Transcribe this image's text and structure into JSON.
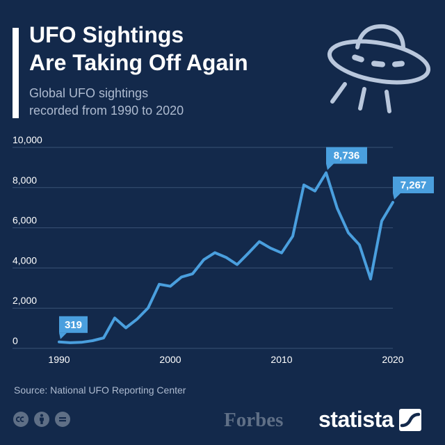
{
  "header": {
    "title_line1": "UFO Sightings",
    "title_line2": "Are Taking Off Again",
    "subtitle_line1": "Global UFO sightings",
    "subtitle_line2": "recorded from 1990 to 2020"
  },
  "footer": {
    "source": "Source: National UFO Reporting Center",
    "partner_logo": "Forbes",
    "brand_logo": "statista"
  },
  "icons": {
    "hero": "ufo-icon",
    "license": [
      "creative-commons-icon",
      "attribution-icon",
      "no-derivatives-icon"
    ],
    "brand": "statista-logo-mark"
  },
  "colors": {
    "background": "#13294b",
    "line": "#4a9fde",
    "label_box": "#4a9fde",
    "grid": "#3a5275",
    "muted_text": "#aebbd0"
  },
  "chart_data": {
    "type": "line",
    "title": "UFO Sightings Are Taking Off Again",
    "subtitle": "Global UFO sightings recorded from 1990 to 2020",
    "x": [
      1990,
      1991,
      1992,
      1993,
      1994,
      1995,
      1996,
      1997,
      1998,
      1999,
      2000,
      2001,
      2002,
      2003,
      2004,
      2005,
      2006,
      2007,
      2008,
      2009,
      2010,
      2011,
      2012,
      2013,
      2014,
      2015,
      2016,
      2017,
      2018,
      2019,
      2020
    ],
    "series": [
      {
        "values": [
          319,
          280,
          300,
          380,
          520,
          1510,
          1020,
          1450,
          2010,
          3190,
          3090,
          3550,
          3710,
          4410,
          4760,
          4530,
          4170,
          4730,
          5310,
          4990,
          4750,
          5580,
          8130,
          7830,
          8736,
          6970,
          5750,
          5150,
          3450,
          6340,
          7267
        ]
      }
    ],
    "xlim": [
      1990,
      2020
    ],
    "ylim": [
      0,
      10000
    ],
    "x_ticks": [
      1990,
      2000,
      2010,
      2020
    ],
    "y_ticks": [
      0,
      2000,
      4000,
      6000,
      8000,
      10000
    ],
    "y_tick_labels": [
      "0",
      "2,000",
      "4,000",
      "6,000",
      "8,000",
      "10,000"
    ],
    "annotations": [
      {
        "x": 1990,
        "y": 319,
        "label": "319"
      },
      {
        "x": 2014,
        "y": 8736,
        "label": "8,736"
      },
      {
        "x": 2020,
        "y": 7267,
        "label": "7,267"
      }
    ],
    "grid": true,
    "legend": "none"
  }
}
